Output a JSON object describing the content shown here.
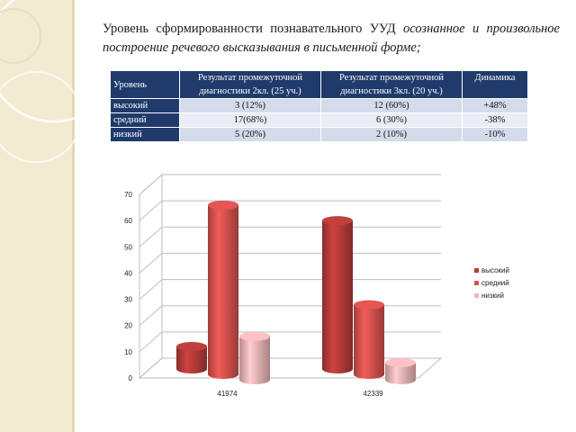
{
  "heading": {
    "plain": "Уровень сформированности познавательного УУД ",
    "emphasis": "осознанное и произвольное построение речевого высказывания в письменной форме;"
  },
  "table": {
    "headers": [
      "Уровень",
      "Результат промежуточной диагностики 2кл. (25 уч.)",
      "Результат промежуточной диагностики 3кл. (20 уч.)",
      "Динамика"
    ],
    "rows": [
      {
        "level": "высокий",
        "r2": "3 (12%)",
        "r3": "12 (60%)",
        "dyn": "+48%"
      },
      {
        "level": "средний",
        "r2": "17(68%)",
        "r3": "6 (30%)",
        "dyn": "-38%"
      },
      {
        "level": "низкий",
        "r2": "5 (20%)",
        "r3": "2 (10%)",
        "dyn": "-10%"
      }
    ]
  },
  "chart_data": {
    "type": "bar",
    "categories": [
      "41974",
      "42339"
    ],
    "series": [
      {
        "name": "высокий",
        "values": [
          12,
          60
        ],
        "color": "#b83c3a"
      },
      {
        "name": "средний",
        "values": [
          68,
          30
        ],
        "color": "#d9534f"
      },
      {
        "name": "низкий",
        "values": [
          20,
          10
        ],
        "color": "#f2b8bb"
      }
    ],
    "ylim": [
      0,
      70
    ],
    "yticks": [
      "0",
      "10",
      "20",
      "30",
      "40",
      "50",
      "60",
      "70"
    ],
    "grid": true,
    "legend": "right",
    "style": "3d-cylinder"
  }
}
